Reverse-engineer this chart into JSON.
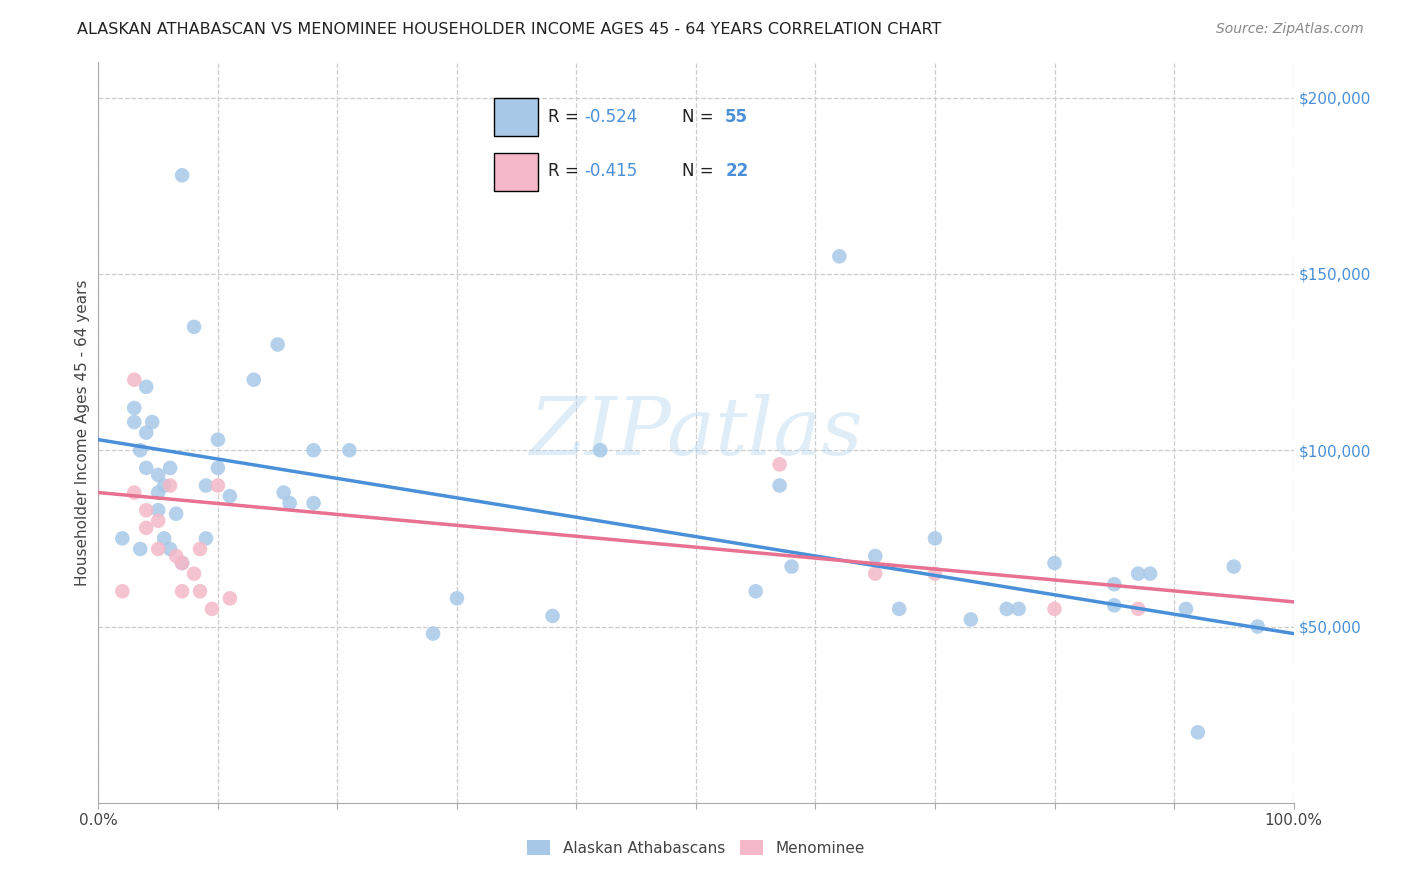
{
  "title": "ALASKAN ATHABASCAN VS MENOMINEE HOUSEHOLDER INCOME AGES 45 - 64 YEARS CORRELATION CHART",
  "source": "Source: ZipAtlas.com",
  "ylabel": "Householder Income Ages 45 - 64 years",
  "xlim": [
    0,
    1
  ],
  "ylim": [
    0,
    210000
  ],
  "ytick_values": [
    50000,
    100000,
    150000,
    200000
  ],
  "ytick_labels": [
    "$50,000",
    "$100,000",
    "$150,000",
    "$200,000"
  ],
  "xtick_positions": [
    0.0,
    0.1,
    0.2,
    0.3,
    0.4,
    0.5,
    0.6,
    0.7,
    0.8,
    0.9,
    1.0
  ],
  "xtick_labels_show": [
    "0.0%",
    "",
    "",
    "",
    "",
    "",
    "",
    "",
    "",
    "",
    "100.0%"
  ],
  "legend_r1": "R = -0.524",
  "legend_n1": "N = 55",
  "legend_r2": "R = -0.415",
  "legend_n2": "N = 22",
  "color_blue": "#a8c8e8",
  "color_pink": "#f4b8c8",
  "color_blue_line": "#4a90d9",
  "color_pink_line": "#e87090",
  "color_blue_dark": "#4a90d9",
  "color_label_text": "#222222",
  "color_n_text": "#4a90d9",
  "watermark_text": "ZIPatlas",
  "blue_scatter_x": [
    0.02,
    0.03,
    0.03,
    0.035,
    0.04,
    0.04,
    0.04,
    0.045,
    0.05,
    0.05,
    0.05,
    0.055,
    0.055,
    0.06,
    0.065,
    0.07,
    0.07,
    0.08,
    0.09,
    0.09,
    0.1,
    0.1,
    0.11,
    0.13,
    0.15,
    0.155,
    0.16,
    0.18,
    0.18,
    0.21,
    0.28,
    0.3,
    0.38,
    0.42,
    0.55,
    0.57,
    0.58,
    0.62,
    0.65,
    0.67,
    0.7,
    0.73,
    0.76,
    0.77,
    0.8,
    0.85,
    0.85,
    0.87,
    0.88,
    0.91,
    0.92,
    0.95,
    0.97,
    0.035,
    0.06
  ],
  "blue_scatter_y": [
    75000,
    112000,
    108000,
    100000,
    118000,
    105000,
    95000,
    108000,
    93000,
    88000,
    83000,
    90000,
    75000,
    95000,
    82000,
    178000,
    68000,
    135000,
    90000,
    75000,
    103000,
    95000,
    87000,
    120000,
    130000,
    88000,
    85000,
    100000,
    85000,
    100000,
    48000,
    58000,
    53000,
    100000,
    60000,
    90000,
    67000,
    155000,
    70000,
    55000,
    75000,
    52000,
    55000,
    55000,
    68000,
    62000,
    56000,
    65000,
    65000,
    55000,
    20000,
    67000,
    50000,
    72000,
    72000
  ],
  "pink_scatter_x": [
    0.02,
    0.03,
    0.03,
    0.04,
    0.04,
    0.05,
    0.05,
    0.06,
    0.065,
    0.07,
    0.07,
    0.08,
    0.085,
    0.085,
    0.095,
    0.1,
    0.11,
    0.57,
    0.65,
    0.7,
    0.8,
    0.87
  ],
  "pink_scatter_y": [
    60000,
    120000,
    88000,
    83000,
    78000,
    80000,
    72000,
    90000,
    70000,
    68000,
    60000,
    65000,
    72000,
    60000,
    55000,
    90000,
    58000,
    96000,
    65000,
    65000,
    55000,
    55000
  ],
  "blue_line_x": [
    0.0,
    1.0
  ],
  "blue_line_y": [
    103000,
    48000
  ],
  "pink_line_x": [
    0.0,
    1.0
  ],
  "pink_line_y": [
    88000,
    57000
  ]
}
